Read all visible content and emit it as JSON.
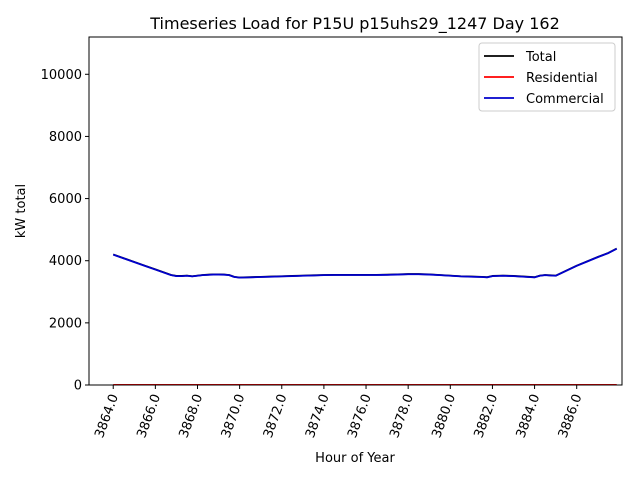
{
  "chart_data": {
    "type": "line",
    "title": "Timeseries Load for P15U p15uhs29_1247  Day 162",
    "xlabel": "Hour of Year",
    "ylabel": "kW total",
    "xlim": [
      3862.85,
      3888.15
    ],
    "ylim": [
      0,
      11200
    ],
    "xticks": [
      3864,
      3866,
      3868,
      3870,
      3872,
      3874,
      3876,
      3878,
      3880,
      3882,
      3884,
      3886
    ],
    "xtick_labels": [
      "3864.0",
      "3866.0",
      "3868.0",
      "3870.0",
      "3872.0",
      "3874.0",
      "3876.0",
      "3878.0",
      "3880.0",
      "3882.0",
      "3884.0",
      "3886.0"
    ],
    "yticks": [
      0,
      2000,
      4000,
      6000,
      8000,
      10000
    ],
    "ytick_labels": [
      "0",
      "2000",
      "4000",
      "6000",
      "8000",
      "10000"
    ],
    "grid": false,
    "legend_position": "top-right",
    "x": [
      3864,
      3864.5,
      3865,
      3865.5,
      3866,
      3866.5,
      3866.75,
      3867,
      3867.25,
      3867.5,
      3867.75,
      3868,
      3868.25,
      3868.5,
      3868.75,
      3869,
      3869.25,
      3869.5,
      3869.75,
      3870,
      3870.5,
      3871,
      3871.5,
      3872,
      3872.5,
      3873,
      3873.5,
      3874,
      3874.5,
      3875,
      3875.5,
      3876,
      3876.5,
      3877,
      3877.5,
      3878,
      3878.5,
      3879,
      3879.5,
      3880,
      3880.5,
      3881,
      3881.5,
      3881.75,
      3882,
      3882.5,
      3883,
      3883.5,
      3884,
      3884.25,
      3884.5,
      3884.75,
      3885,
      3885.5,
      3886,
      3886.5,
      3887,
      3887.5,
      3887.9
    ],
    "series": [
      {
        "name": "Total",
        "color": "#000000",
        "values": [
          4200,
          4080,
          3960,
          3840,
          3720,
          3600,
          3540,
          3510,
          3510,
          3520,
          3500,
          3520,
          3540,
          3550,
          3560,
          3560,
          3555,
          3540,
          3480,
          3460,
          3470,
          3480,
          3490,
          3500,
          3510,
          3520,
          3530,
          3540,
          3545,
          3545,
          3545,
          3545,
          3545,
          3550,
          3560,
          3570,
          3570,
          3560,
          3540,
          3520,
          3500,
          3490,
          3480,
          3470,
          3510,
          3520,
          3510,
          3490,
          3470,
          3520,
          3540,
          3530,
          3520,
          3680,
          3840,
          3980,
          4120,
          4250,
          4390
        ]
      },
      {
        "name": "Residential",
        "color": "#ff0000",
        "values": [
          5,
          5,
          5,
          5,
          5,
          5,
          5,
          5,
          5,
          5,
          5,
          5,
          5,
          5,
          5,
          5,
          5,
          5,
          5,
          5,
          5,
          5,
          5,
          5,
          5,
          5,
          5,
          5,
          5,
          5,
          5,
          5,
          5,
          5,
          5,
          5,
          5,
          5,
          5,
          5,
          5,
          5,
          5,
          5,
          5,
          5,
          5,
          5,
          5,
          5,
          5,
          5,
          5,
          5,
          5,
          5,
          5,
          5,
          5
        ]
      },
      {
        "name": "Commercial",
        "color": "#0000cc",
        "values": [
          4195,
          4075,
          3955,
          3835,
          3715,
          3595,
          3535,
          3505,
          3505,
          3515,
          3495,
          3515,
          3535,
          3545,
          3555,
          3555,
          3550,
          3535,
          3475,
          3455,
          3465,
          3475,
          3485,
          3495,
          3505,
          3515,
          3525,
          3535,
          3540,
          3540,
          3540,
          3540,
          3540,
          3545,
          3555,
          3565,
          3565,
          3555,
          3535,
          3515,
          3495,
          3485,
          3475,
          3465,
          3505,
          3515,
          3505,
          3485,
          3465,
          3515,
          3535,
          3525,
          3515,
          3675,
          3835,
          3975,
          4115,
          4245,
          4385
        ]
      }
    ]
  }
}
